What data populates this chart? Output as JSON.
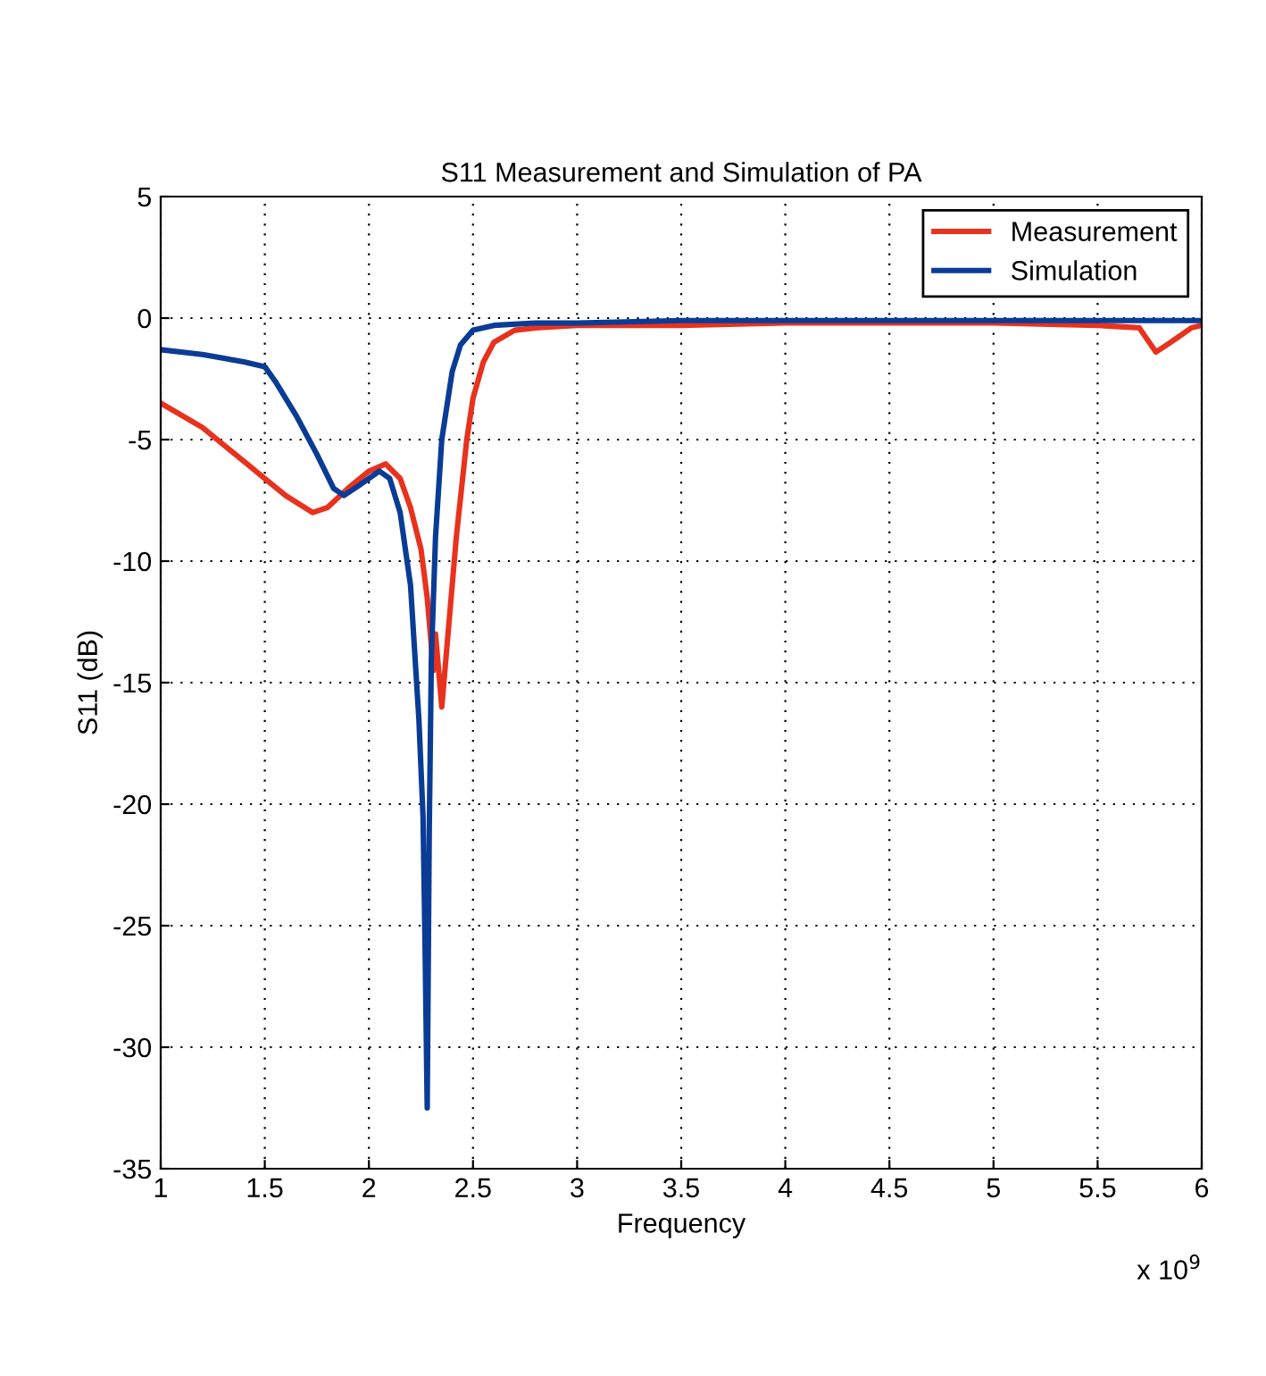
{
  "chart_data": {
    "type": "line",
    "title": "S11 Measurement and Simulation of PA",
    "xlabel": "Frequency",
    "ylabel": "S11 (dB)",
    "annotations": [
      "x 10$^{9}$"
    ],
    "series": [
      {
        "name": "Measurement",
        "color": "#e8321e",
        "x": [
          1.0,
          1.2,
          1.4,
          1.5,
          1.6,
          1.73,
          1.8,
          1.9,
          2.0,
          2.08,
          2.15,
          2.2,
          2.25,
          2.28,
          2.31,
          2.32,
          2.35,
          2.38,
          2.42,
          2.47,
          2.5,
          2.55,
          2.6,
          2.7,
          2.8,
          3.0,
          3.5,
          4.0,
          4.5,
          5.0,
          5.5,
          5.7,
          5.78,
          5.85,
          5.95,
          6.0
        ],
        "values": [
          -3.5,
          -4.5,
          -5.9,
          -6.6,
          -7.3,
          -8.0,
          -7.8,
          -7.0,
          -6.3,
          -6.0,
          -6.6,
          -7.8,
          -9.5,
          -11.5,
          -14.5,
          -13.0,
          -16.0,
          -13.0,
          -9.0,
          -5.0,
          -3.3,
          -1.8,
          -1.0,
          -0.5,
          -0.4,
          -0.3,
          -0.3,
          -0.2,
          -0.2,
          -0.2,
          -0.3,
          -0.4,
          -1.4,
          -1.0,
          -0.4,
          -0.3
        ]
      },
      {
        "name": "Simulation",
        "color": "#0a3c96",
        "x": [
          1.0,
          1.2,
          1.4,
          1.5,
          1.55,
          1.65,
          1.75,
          1.83,
          1.88,
          1.95,
          2.05,
          2.1,
          2.15,
          2.2,
          2.24,
          2.26,
          2.27,
          2.28,
          2.29,
          2.3,
          2.32,
          2.35,
          2.4,
          2.44,
          2.5,
          2.6,
          2.8,
          3.0,
          3.5,
          4.0,
          4.5,
          5.0,
          5.5,
          6.0
        ],
        "values": [
          -1.3,
          -1.5,
          -1.8,
          -2.0,
          -2.6,
          -4.0,
          -5.6,
          -7.0,
          -7.3,
          -6.9,
          -6.3,
          -6.6,
          -8.0,
          -11.0,
          -16.5,
          -20.5,
          -26.0,
          -32.5,
          -21.0,
          -14.0,
          -9.0,
          -5.0,
          -2.2,
          -1.1,
          -0.5,
          -0.3,
          -0.2,
          -0.2,
          -0.1,
          -0.1,
          -0.1,
          -0.1,
          -0.1,
          -0.1
        ]
      }
    ],
    "xlim": [
      1,
      6
    ],
    "xticks": [
      1,
      1.5,
      2,
      2.5,
      3,
      3.5,
      4,
      4.5,
      5,
      5.5,
      6
    ],
    "ylim": [
      -35,
      5
    ],
    "yticks": [
      -35,
      -30,
      -25,
      -20,
      -15,
      -10,
      -5,
      0,
      5
    ],
    "grid": true,
    "legend": "top right",
    "line_style": "solid",
    "marker": "none"
  }
}
